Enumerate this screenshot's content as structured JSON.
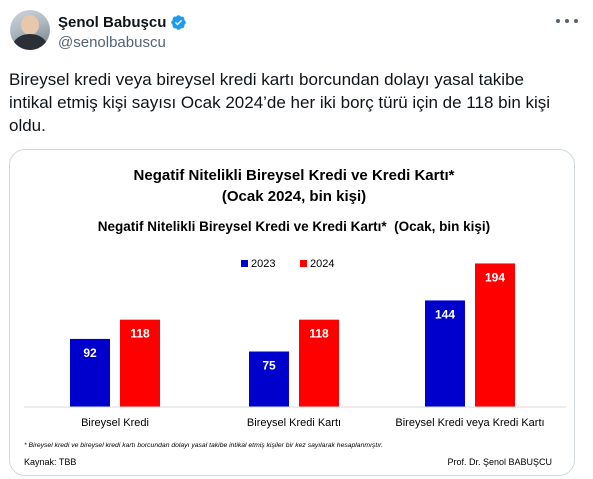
{
  "author": {
    "display_name": "Şenol Babuşcu",
    "handle": "@senolbabuscu",
    "avatar_icon": "profile-photo",
    "verified_icon": "verified-badge-icon",
    "verified_color": "#1d9bf0"
  },
  "tweet": {
    "lines": [
      "Bireysel kredi veya bireysel kredi kartı borcundan dolayı yasal takibe",
      "intikal etmiş kişi sayısı Ocak 2024’de her iki borç türü için de 118 bin kişi",
      "oldu."
    ]
  },
  "image": {
    "title_line1": "Negatif Nitelikli Bireysel Kredi ve Kredi Kartı*",
    "title_line2": "(Ocak 2024, bin kişi)",
    "footnote": "* Bireysel kredi ve bireysel kredi kartı borcundan dolayı yasal takibe intikal etmiş kişiler bir kez sayılarak hesaplanmıştır.",
    "source": "Kaynak: TBB",
    "credit": "Prof. Dr. Şenol BABUŞCU"
  },
  "chart_data": {
    "type": "bar",
    "title": "Negatif Nitelikli Bireysel Kredi ve Kredi Kartı*  (Ocak, bin kişi)",
    "categories": [
      "Bireysel Kredi",
      "Bireysel Kredi Kartı",
      "Bireysel Kredi veya Kredi Kartı"
    ],
    "series": [
      {
        "name": "2023",
        "values": [
          92,
          75,
          144
        ],
        "color": "#0000cc"
      },
      {
        "name": "2024",
        "values": [
          118,
          118,
          194
        ],
        "color": "#ff0000"
      }
    ],
    "ylim": [
      0,
      200
    ],
    "grid": false,
    "legend": "top-center",
    "data_labels": true
  }
}
